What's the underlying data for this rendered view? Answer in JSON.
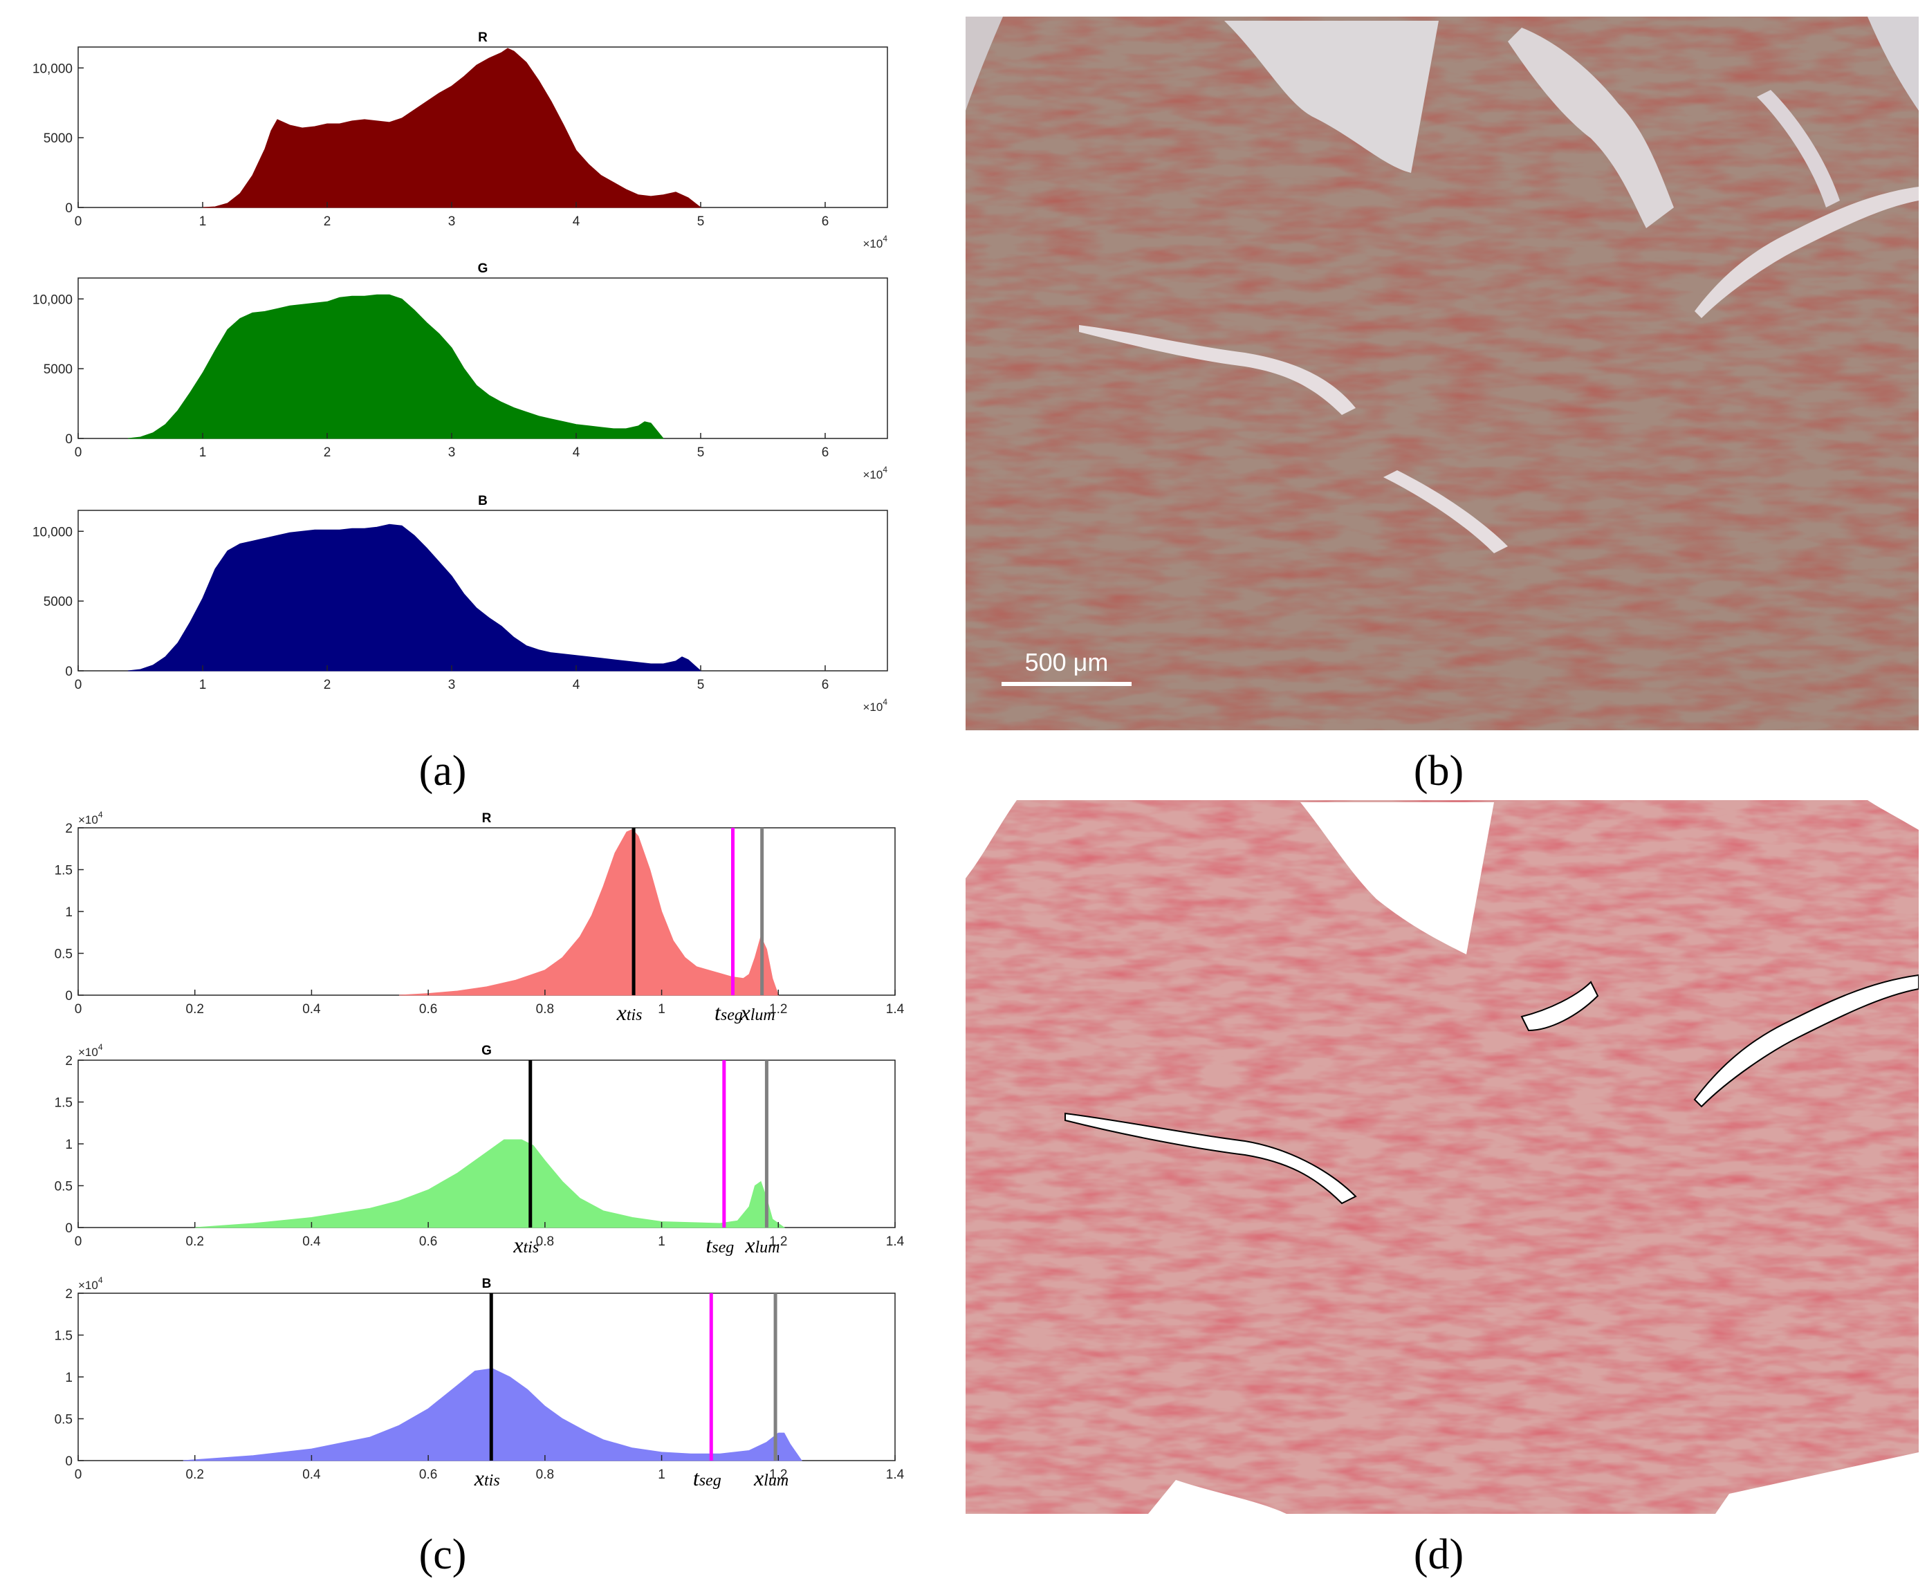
{
  "panels": {
    "a": {
      "caption": "(a)"
    },
    "b": {
      "caption": "(b)",
      "scalebar_label": "500 μm"
    },
    "c": {
      "caption": "(c)"
    },
    "d": {
      "caption": "(d)"
    }
  },
  "chart_data": [
    {
      "id": "a-R",
      "type": "area",
      "title": "R",
      "color": "#800000",
      "xlim": [
        0,
        65000
      ],
      "ylim": [
        0,
        11500
      ],
      "xticks": [
        0,
        10000,
        20000,
        30000,
        40000,
        50000,
        60000
      ],
      "xtick_labels": [
        "0",
        "1",
        "2",
        "3",
        "4",
        "5",
        "6"
      ],
      "yticks": [
        0,
        5000,
        10000
      ],
      "ytick_labels": [
        "0",
        "5000",
        "10,000"
      ],
      "x_multiplier": "×10",
      "x_multiplier_exp": "4",
      "y_multiplier": "",
      "y_multiplier_exp": "",
      "x": [
        10000,
        11000,
        12000,
        13000,
        14000,
        15000,
        15500,
        16000,
        17000,
        18000,
        19000,
        20000,
        21000,
        22000,
        23000,
        24000,
        25000,
        26000,
        27000,
        28000,
        29000,
        30000,
        31000,
        32000,
        33000,
        34000,
        34500,
        35000,
        36000,
        37000,
        38000,
        39000,
        40000,
        41000,
        42000,
        43000,
        44000,
        45000,
        46000,
        47000,
        48000,
        49000,
        50000
      ],
      "y": [
        0,
        50,
        300,
        1000,
        2300,
        4200,
        5500,
        6300,
        5900,
        5700,
        5800,
        6000,
        6000,
        6200,
        6300,
        6200,
        6100,
        6400,
        7000,
        7600,
        8200,
        8700,
        9400,
        10200,
        10700,
        11100,
        11400,
        11200,
        10400,
        9100,
        7600,
        5900,
        4100,
        3100,
        2300,
        1800,
        1300,
        900,
        800,
        900,
        1100,
        700,
        0
      ],
      "markers": []
    },
    {
      "id": "a-G",
      "type": "area",
      "title": "G",
      "color": "#008000",
      "xlim": [
        0,
        65000
      ],
      "ylim": [
        0,
        11500
      ],
      "xticks": [
        0,
        10000,
        20000,
        30000,
        40000,
        50000,
        60000
      ],
      "xtick_labels": [
        "0",
        "1",
        "2",
        "3",
        "4",
        "5",
        "6"
      ],
      "yticks": [
        0,
        5000,
        10000
      ],
      "ytick_labels": [
        "0",
        "5000",
        "10,000"
      ],
      "x_multiplier": "×10",
      "x_multiplier_exp": "4",
      "y_multiplier": "",
      "y_multiplier_exp": "",
      "x": [
        4000,
        5000,
        6000,
        7000,
        8000,
        9000,
        10000,
        11000,
        12000,
        13000,
        14000,
        15000,
        16000,
        17000,
        18000,
        19000,
        20000,
        21000,
        22000,
        23000,
        24000,
        25000,
        26000,
        27000,
        28000,
        29000,
        30000,
        31000,
        32000,
        33000,
        34000,
        35000,
        36000,
        37000,
        38000,
        39000,
        40000,
        41000,
        42000,
        43000,
        44000,
        45000,
        45500,
        46000,
        47000
      ],
      "y": [
        0,
        100,
        400,
        1000,
        2000,
        3300,
        4700,
        6300,
        7800,
        8600,
        9000,
        9100,
        9300,
        9500,
        9600,
        9700,
        9800,
        10100,
        10200,
        10200,
        10300,
        10300,
        10000,
        9200,
        8300,
        7500,
        6500,
        5000,
        3800,
        3100,
        2600,
        2200,
        1900,
        1600,
        1400,
        1200,
        1000,
        900,
        800,
        700,
        700,
        900,
        1200,
        1100,
        0
      ],
      "markers": []
    },
    {
      "id": "a-B",
      "type": "area",
      "title": "B",
      "color": "#000080",
      "xlim": [
        0,
        65000
      ],
      "ylim": [
        0,
        11500
      ],
      "xticks": [
        0,
        10000,
        20000,
        30000,
        40000,
        50000,
        60000
      ],
      "xtick_labels": [
        "0",
        "1",
        "2",
        "3",
        "4",
        "5",
        "6"
      ],
      "yticks": [
        0,
        5000,
        10000
      ],
      "ytick_labels": [
        "0",
        "5000",
        "10,000"
      ],
      "x_multiplier": "×10",
      "x_multiplier_exp": "4",
      "y_multiplier": "",
      "y_multiplier_exp": "",
      "x": [
        4000,
        5000,
        6000,
        7000,
        8000,
        9000,
        10000,
        11000,
        12000,
        13000,
        14000,
        15000,
        16000,
        17000,
        18000,
        19000,
        20000,
        21000,
        22000,
        23000,
        24000,
        25000,
        26000,
        27000,
        28000,
        29000,
        30000,
        31000,
        32000,
        33000,
        34000,
        35000,
        36000,
        37000,
        38000,
        39000,
        40000,
        41000,
        42000,
        43000,
        44000,
        45000,
        46000,
        47000,
        48000,
        48500,
        49000,
        50000
      ],
      "y": [
        0,
        100,
        400,
        1000,
        2000,
        3500,
        5200,
        7300,
        8600,
        9100,
        9300,
        9500,
        9700,
        9900,
        10000,
        10100,
        10100,
        10100,
        10200,
        10200,
        10300,
        10500,
        10400,
        9700,
        8800,
        7800,
        6800,
        5500,
        4500,
        3800,
        3200,
        2400,
        1800,
        1500,
        1300,
        1200,
        1100,
        1000,
        900,
        800,
        700,
        600,
        500,
        500,
        700,
        1000,
        800,
        0
      ],
      "markers": []
    },
    {
      "id": "c-R",
      "type": "area",
      "title": "R",
      "color": "#f87878",
      "xlim": [
        0,
        1.4
      ],
      "ylim": [
        0,
        2
      ],
      "xticks": [
        0,
        0.2,
        0.4,
        0.6,
        0.8,
        1,
        1.2,
        1.4
      ],
      "xtick_labels": [
        "0",
        "0.2",
        "0.4",
        "0.6",
        "0.8",
        "1",
        "1.2",
        "1.4"
      ],
      "yticks": [
        0,
        0.5,
        1,
        1.5,
        2
      ],
      "ytick_labels": [
        "0",
        "0.5",
        "1",
        "1.5",
        "2"
      ],
      "x_multiplier": "",
      "x_multiplier_exp": "",
      "y_multiplier": "×10",
      "y_multiplier_exp": "4",
      "x": [
        0.55,
        0.6,
        0.65,
        0.7,
        0.75,
        0.8,
        0.83,
        0.86,
        0.88,
        0.9,
        0.92,
        0.94,
        0.95,
        0.96,
        0.98,
        1.0,
        1.02,
        1.04,
        1.06,
        1.08,
        1.1,
        1.12,
        1.14,
        1.15,
        1.16,
        1.17,
        1.18,
        1.19,
        1.2
      ],
      "y": [
        0,
        0.02,
        0.05,
        0.1,
        0.18,
        0.3,
        0.45,
        0.7,
        0.95,
        1.3,
        1.7,
        1.95,
        1.98,
        1.9,
        1.5,
        1.0,
        0.65,
        0.45,
        0.34,
        0.3,
        0.26,
        0.22,
        0.2,
        0.25,
        0.45,
        0.7,
        0.55,
        0.2,
        0
      ],
      "markers": [
        {
          "x": 0.952,
          "color": "#000000",
          "label": "x",
          "sub": "tis"
        },
        {
          "x": 1.122,
          "color": "#ff00ff",
          "label": "t",
          "sub": "seg"
        },
        {
          "x": 1.172,
          "color": "#808080",
          "label": "x",
          "sub": "lum"
        }
      ]
    },
    {
      "id": "c-G",
      "type": "area",
      "title": "G",
      "color": "#80f080",
      "xlim": [
        0,
        1.4
      ],
      "ylim": [
        0,
        2
      ],
      "xticks": [
        0,
        0.2,
        0.4,
        0.6,
        0.8,
        1,
        1.2,
        1.4
      ],
      "xtick_labels": [
        "0",
        "0.2",
        "0.4",
        "0.6",
        "0.8",
        "1",
        "1.2",
        "1.4"
      ],
      "yticks": [
        0,
        0.5,
        1,
        1.5,
        2
      ],
      "ytick_labels": [
        "0",
        "0.5",
        "1",
        "1.5",
        "2"
      ],
      "x_multiplier": "",
      "x_multiplier_exp": "",
      "y_multiplier": "×10",
      "y_multiplier_exp": "4",
      "x": [
        0.2,
        0.3,
        0.4,
        0.5,
        0.55,
        0.6,
        0.65,
        0.7,
        0.73,
        0.76,
        0.78,
        0.8,
        0.83,
        0.86,
        0.9,
        0.95,
        1.0,
        1.05,
        1.1,
        1.13,
        1.15,
        1.16,
        1.17,
        1.18,
        1.19,
        1.21
      ],
      "y": [
        0,
        0.05,
        0.12,
        0.23,
        0.32,
        0.45,
        0.65,
        0.9,
        1.05,
        1.05,
        0.98,
        0.8,
        0.55,
        0.35,
        0.2,
        0.12,
        0.07,
        0.06,
        0.05,
        0.08,
        0.25,
        0.5,
        0.55,
        0.35,
        0.1,
        0
      ],
      "markers": [
        {
          "x": 0.775,
          "color": "#000000",
          "label": "x",
          "sub": "tis"
        },
        {
          "x": 1.107,
          "color": "#ff00ff",
          "label": "t",
          "sub": "seg"
        },
        {
          "x": 1.18,
          "color": "#808080",
          "label": "x",
          "sub": "lum"
        }
      ]
    },
    {
      "id": "c-B",
      "type": "area",
      "title": "B",
      "color": "#8080f8",
      "xlim": [
        0,
        1.4
      ],
      "ylim": [
        0,
        2
      ],
      "xticks": [
        0,
        0.2,
        0.4,
        0.6,
        0.8,
        1,
        1.2,
        1.4
      ],
      "xtick_labels": [
        "0",
        "0.2",
        "0.4",
        "0.6",
        "0.8",
        "1",
        "1.2",
        "1.4"
      ],
      "yticks": [
        0,
        0.5,
        1,
        1.5,
        2
      ],
      "ytick_labels": [
        "0",
        "0.5",
        "1",
        "1.5",
        "2"
      ],
      "x_multiplier": "",
      "x_multiplier_exp": "",
      "y_multiplier": "×10",
      "y_multiplier_exp": "4",
      "x": [
        0.18,
        0.3,
        0.4,
        0.5,
        0.55,
        0.6,
        0.65,
        0.68,
        0.71,
        0.74,
        0.77,
        0.8,
        0.83,
        0.87,
        0.9,
        0.95,
        1.0,
        1.05,
        1.1,
        1.15,
        1.18,
        1.2,
        1.21,
        1.22,
        1.24
      ],
      "y": [
        0,
        0.06,
        0.14,
        0.28,
        0.42,
        0.62,
        0.9,
        1.07,
        1.1,
        1.0,
        0.85,
        0.65,
        0.5,
        0.35,
        0.25,
        0.15,
        0.1,
        0.08,
        0.08,
        0.12,
        0.22,
        0.33,
        0.33,
        0.2,
        0
      ],
      "markers": [
        {
          "x": 0.708,
          "color": "#000000",
          "label": "x",
          "sub": "tis"
        },
        {
          "x": 1.085,
          "color": "#ff00ff",
          "label": "t",
          "sub": "seg"
        },
        {
          "x": 1.195,
          "color": "#808080",
          "label": "x",
          "sub": "lum"
        }
      ]
    }
  ]
}
